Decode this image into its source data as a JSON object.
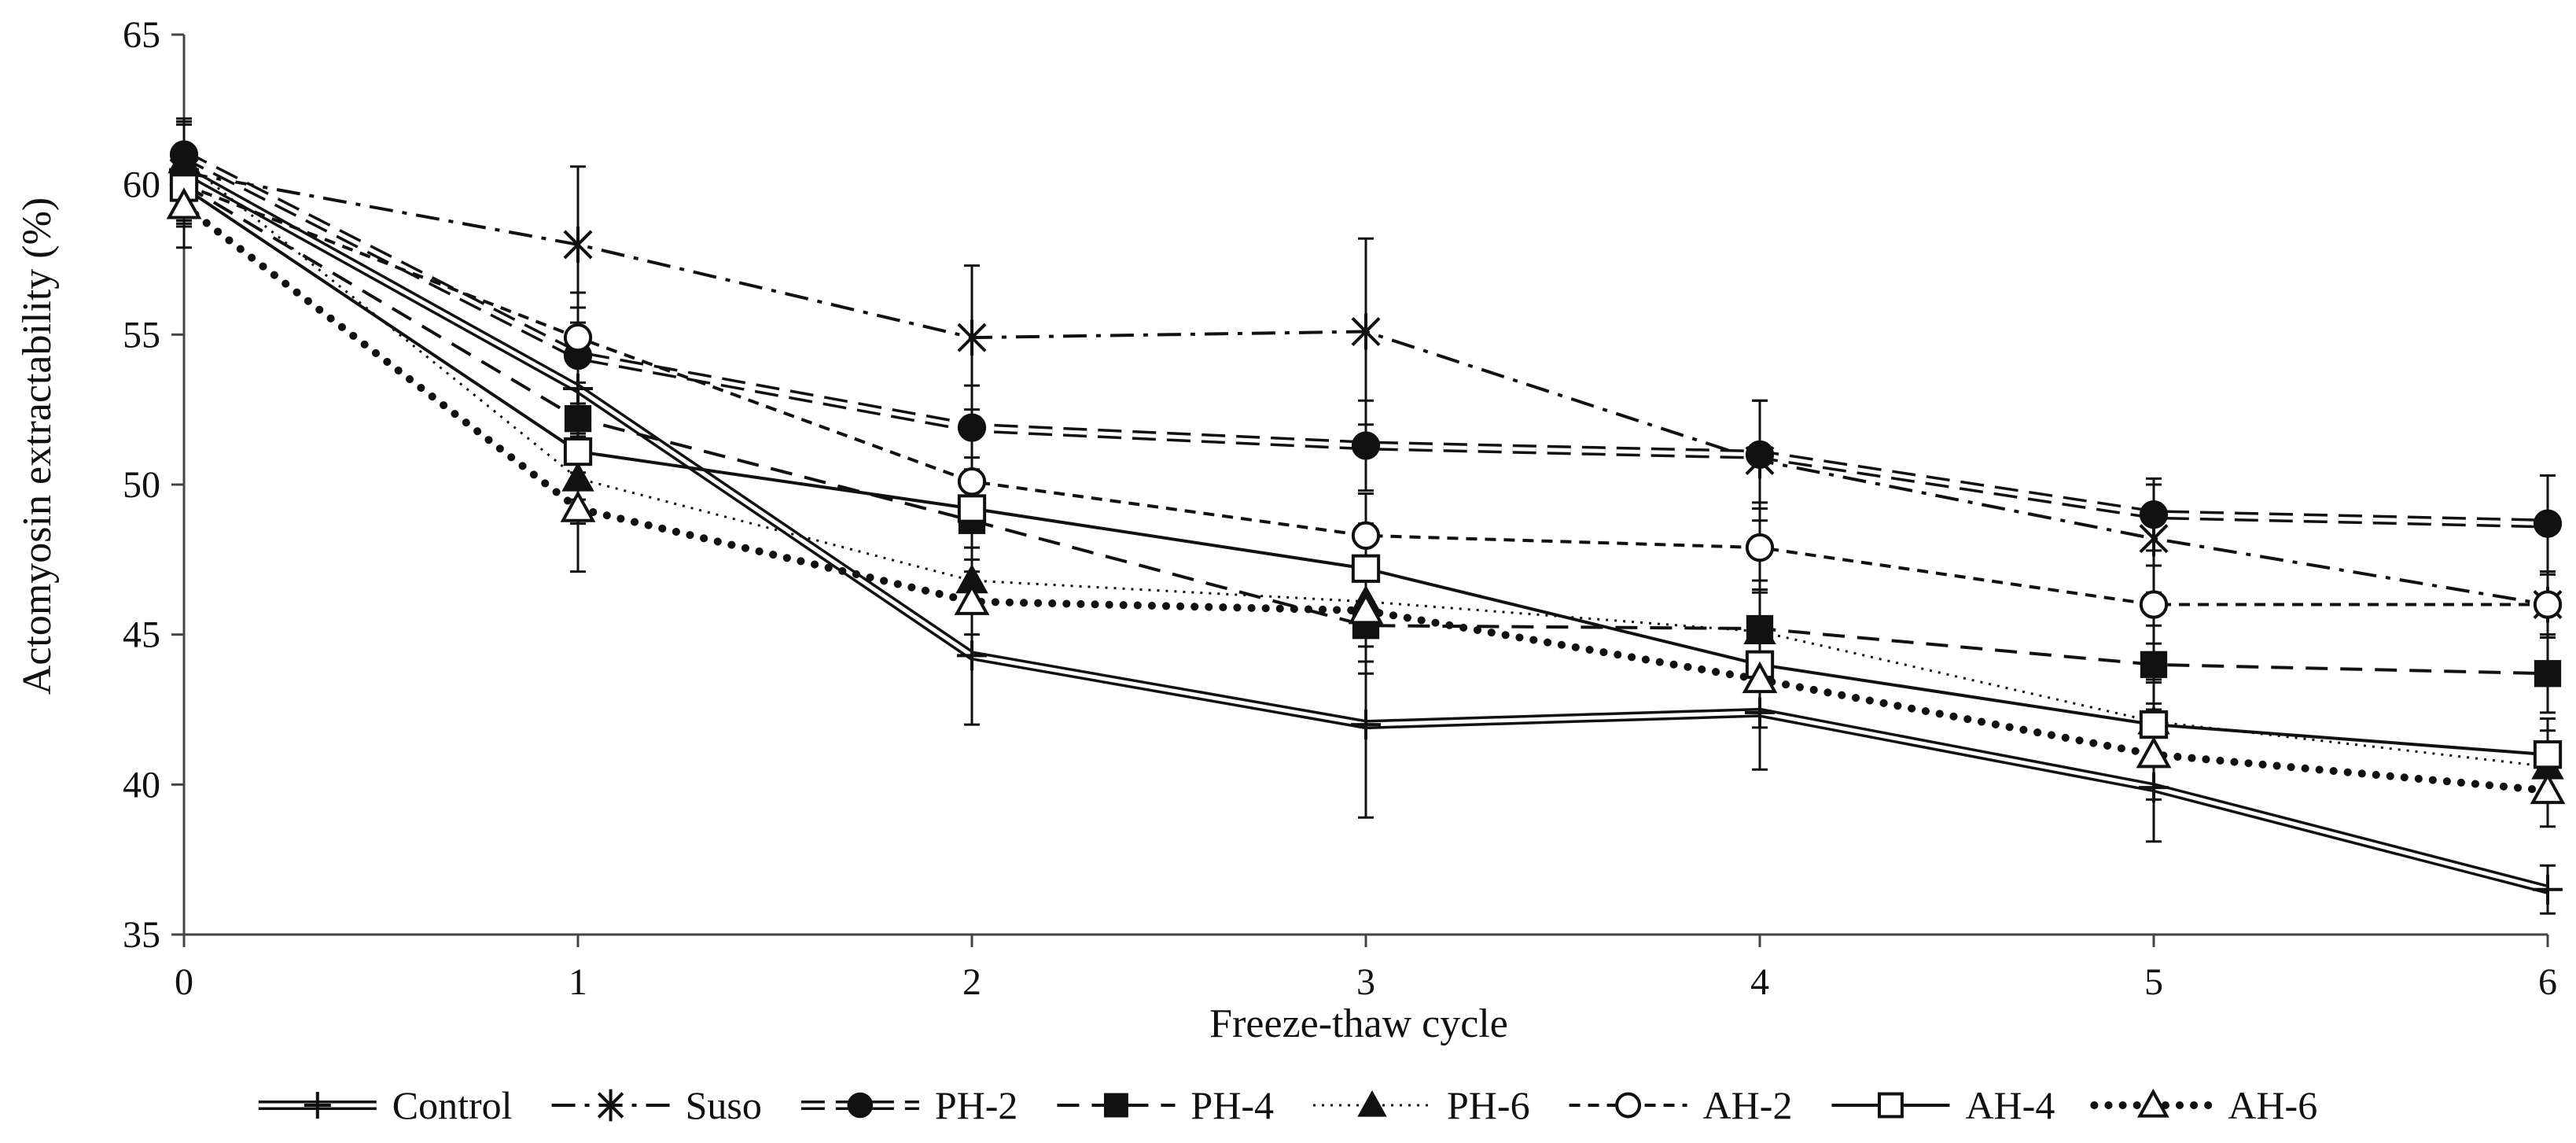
{
  "chart_data": {
    "type": "line",
    "title": "",
    "xlabel": "Freeze-thaw cycle",
    "ylabel": "Actomyosin extractability (%)",
    "x": [
      0,
      1,
      2,
      3,
      4,
      5,
      6
    ],
    "xlim": [
      0,
      6
    ],
    "ylim": [
      35,
      65
    ],
    "yticks": [
      35,
      40,
      45,
      50,
      55,
      60,
      65
    ],
    "grid": false,
    "legend_position": "bottom",
    "series": [
      {
        "name": "Control",
        "marker": "plus",
        "line": "double",
        "values": [
          60.5,
          53.2,
          44.3,
          42.0,
          42.4,
          39.9,
          36.5
        ],
        "errors": [
          1.5,
          1.6,
          2.3,
          3.1,
          1.9,
          1.8,
          0.8
        ]
      },
      {
        "name": "Suso",
        "marker": "star",
        "line": "dashdot",
        "values": [
          60.4,
          58.0,
          54.9,
          55.1,
          50.8,
          48.2,
          46.0
        ],
        "errors": [
          1.7,
          2.6,
          2.4,
          3.1,
          2.0,
          1.8,
          1.0
        ]
      },
      {
        "name": "PH-2",
        "marker": "filled-circle",
        "line": "double-dash",
        "values": [
          61.0,
          54.3,
          51.9,
          51.3,
          51.0,
          49.0,
          48.7
        ],
        "errors": [
          1.1,
          1.6,
          1.4,
          1.5,
          1.8,
          1.2,
          1.6
        ]
      },
      {
        "name": "PH-4",
        "marker": "filled-square",
        "line": "dash",
        "values": [
          60.0,
          52.2,
          48.8,
          45.3,
          45.2,
          44.0,
          43.7
        ],
        "errors": [
          1.3,
          1.8,
          1.7,
          1.6,
          1.6,
          1.3,
          1.3
        ]
      },
      {
        "name": "PH-6",
        "marker": "filled-triangle",
        "line": "dot",
        "values": [
          60.8,
          50.2,
          46.8,
          46.1,
          45.1,
          42.1,
          40.6
        ],
        "errors": [
          1.4,
          1.5,
          1.8,
          1.5,
          1.4,
          1.4,
          1.2
        ]
      },
      {
        "name": "AH-2",
        "marker": "open-circle",
        "line": "short-dash",
        "values": [
          60.0,
          54.9,
          50.1,
          48.3,
          47.9,
          46.0,
          46.0
        ],
        "errors": [
          1.2,
          1.5,
          1.6,
          1.4,
          1.5,
          1.3,
          1.1
        ]
      },
      {
        "name": "AH-4",
        "marker": "open-square",
        "line": "solid",
        "values": [
          59.9,
          51.1,
          49.2,
          47.2,
          44.0,
          42.0,
          41.0
        ],
        "errors": [
          1.3,
          1.6,
          1.7,
          1.5,
          1.6,
          1.4,
          1.2
        ]
      },
      {
        "name": "AH-6",
        "marker": "open-triangle",
        "line": "heavy-dot",
        "values": [
          59.3,
          49.2,
          46.1,
          45.8,
          43.5,
          41.0,
          39.8
        ],
        "errors": [
          1.4,
          2.1,
          1.8,
          1.7,
          1.6,
          1.5,
          1.2
        ]
      }
    ]
  }
}
